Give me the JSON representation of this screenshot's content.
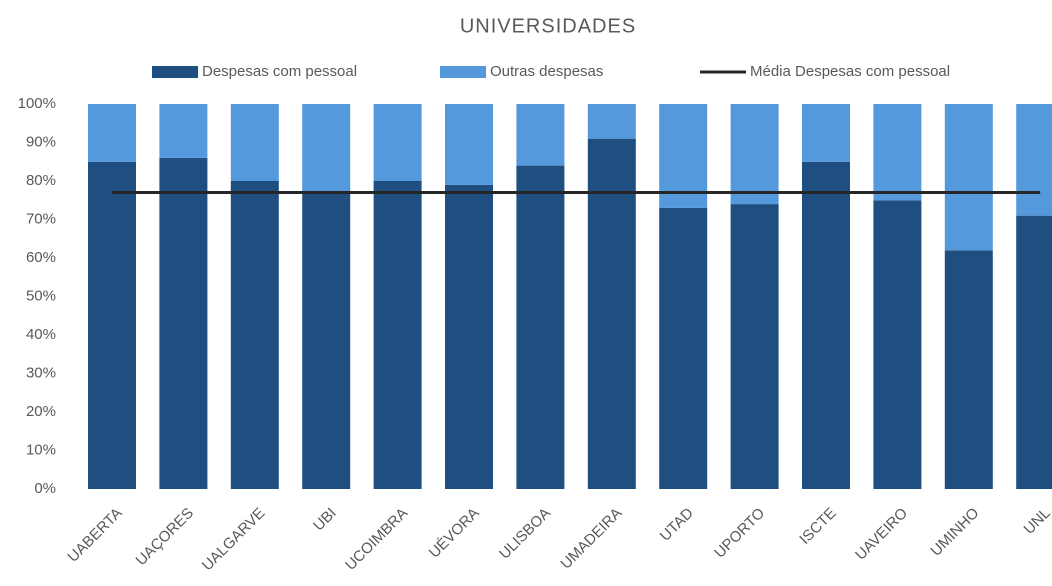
{
  "chart_data": {
    "type": "bar",
    "stacked": true,
    "title": "UNIVERSIDADES",
    "categories": [
      "UABERTA",
      "UAÇORES",
      "UALGARVE",
      "UBI",
      "UCOIMBRA",
      "UÉVORA",
      "ULISBOA",
      "UMADEIRA",
      "UTAD",
      "UPORTO",
      "ISCTE",
      "UAVEIRO",
      "UMINHO",
      "UNL"
    ],
    "series": [
      {
        "name": "Despesas com pessoal",
        "color": "#1f4e81",
        "type": "bar",
        "values": [
          85,
          86,
          80,
          77,
          80,
          79,
          84,
          91,
          73,
          74,
          85,
          75,
          62,
          71
        ]
      },
      {
        "name": "Outras despesas",
        "color": "#5599dd",
        "type": "bar",
        "values": [
          15,
          14,
          20,
          23,
          20,
          21,
          16,
          9,
          27,
          26,
          15,
          25,
          38,
          29
        ]
      },
      {
        "name": "Média Despesas com pessoal",
        "color": "#262626",
        "type": "line",
        "values": [
          77,
          77,
          77,
          77,
          77,
          77,
          77,
          77,
          77,
          77,
          77,
          77,
          77,
          77
        ]
      }
    ],
    "ylim": [
      0,
      100
    ],
    "yticks": [
      {
        "value": 0,
        "label": "0%"
      },
      {
        "value": 10,
        "label": "10%"
      },
      {
        "value": 20,
        "label": "20%"
      },
      {
        "value": 30,
        "label": "30%"
      },
      {
        "value": 40,
        "label": "40%"
      },
      {
        "value": 50,
        "label": "50%"
      },
      {
        "value": 60,
        "label": "60%"
      },
      {
        "value": 70,
        "label": "70%"
      },
      {
        "value": 80,
        "label": "80%"
      },
      {
        "value": 90,
        "label": "90%"
      },
      {
        "value": 100,
        "label": "100%"
      }
    ],
    "legend": "top",
    "grid": false
  }
}
